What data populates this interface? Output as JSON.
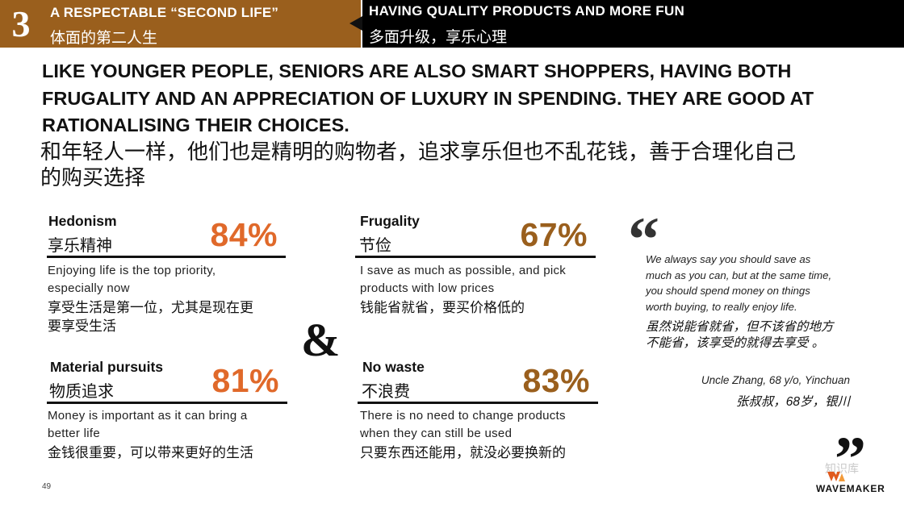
{
  "header": {
    "section_number": "3",
    "left_title_en": "A RESPECTABLE “SECOND LIFE”",
    "left_title_zh": "体面的第二人生",
    "right_title_en": "HAVING QUALITY PRODUCTS AND MORE FUN",
    "right_title_zh": "多面升级，享乐心理"
  },
  "headline": {
    "en_lines": [
      "LIKE YOUNGER PEOPLE, SENIORS ARE ALSO SMART SHOPPERS, HAVING BOTH",
      "FRUGALITY AND AN APPRECIATION OF LUXURY IN SPENDING. THEY ARE GOOD AT",
      "RATIONALISING THEIR CHOICES."
    ],
    "zh_lines": [
      "和年轻人一样，他们也是精明的购物者，追求享乐但也不乱花钱，善于合理化自己",
      "的购买选择"
    ]
  },
  "stats": [
    {
      "label_en": "Hedonism",
      "label_zh": "享乐精神",
      "percent": "84%",
      "desc_en": [
        "Enjoying life is the top priority,",
        "especially now"
      ],
      "desc_zh": [
        "享受生活是第一位，尤其是现在更",
        "要享受生活"
      ]
    },
    {
      "label_en": "Material pursuits",
      "label_zh": "物质追求",
      "percent": "81%",
      "desc_en": [
        "Money is important as it can bring a",
        "better life"
      ],
      "desc_zh": [
        "金钱很重要，可以带来更好的生活"
      ]
    },
    {
      "label_en": "Frugality",
      "label_zh": "节俭",
      "percent": "67%",
      "desc_en": [
        "I save as much as possible, and pick",
        "products with low prices"
      ],
      "desc_zh": [
        "钱能省就省，要买价格低的"
      ]
    },
    {
      "label_en": "No waste",
      "label_zh": "不浪费",
      "percent": "83%",
      "desc_en": [
        "There is no need to change products",
        "when they can still be used"
      ],
      "desc_zh": [
        "只要东西还能用，就没必要换新的"
      ]
    }
  ],
  "ampersand": "&",
  "quote": {
    "open_mark": "“",
    "close_mark": "”",
    "text_en": [
      "We always say you should save as",
      "much as you can, but at the same time,",
      "you should spend money on things",
      "worth buying, to really enjoy life."
    ],
    "text_zh": [
      "虽然说能省就省，但不该省的地方",
      "不能省，该享受的就得去享受 。"
    ],
    "attribution_en": "Uncle Zhang, 68 y/o, Yinchuan",
    "attribution_zh": "张叔叔，68岁，银川"
  },
  "footer": {
    "page_number": "49",
    "brand": "WAVEMAKER",
    "watermark": "知识库"
  },
  "colors": {
    "header_brown": "#9a5f1d",
    "header_black": "#000000",
    "percent_orange": "#e0692a",
    "percent_brown": "#9a5f1d"
  }
}
